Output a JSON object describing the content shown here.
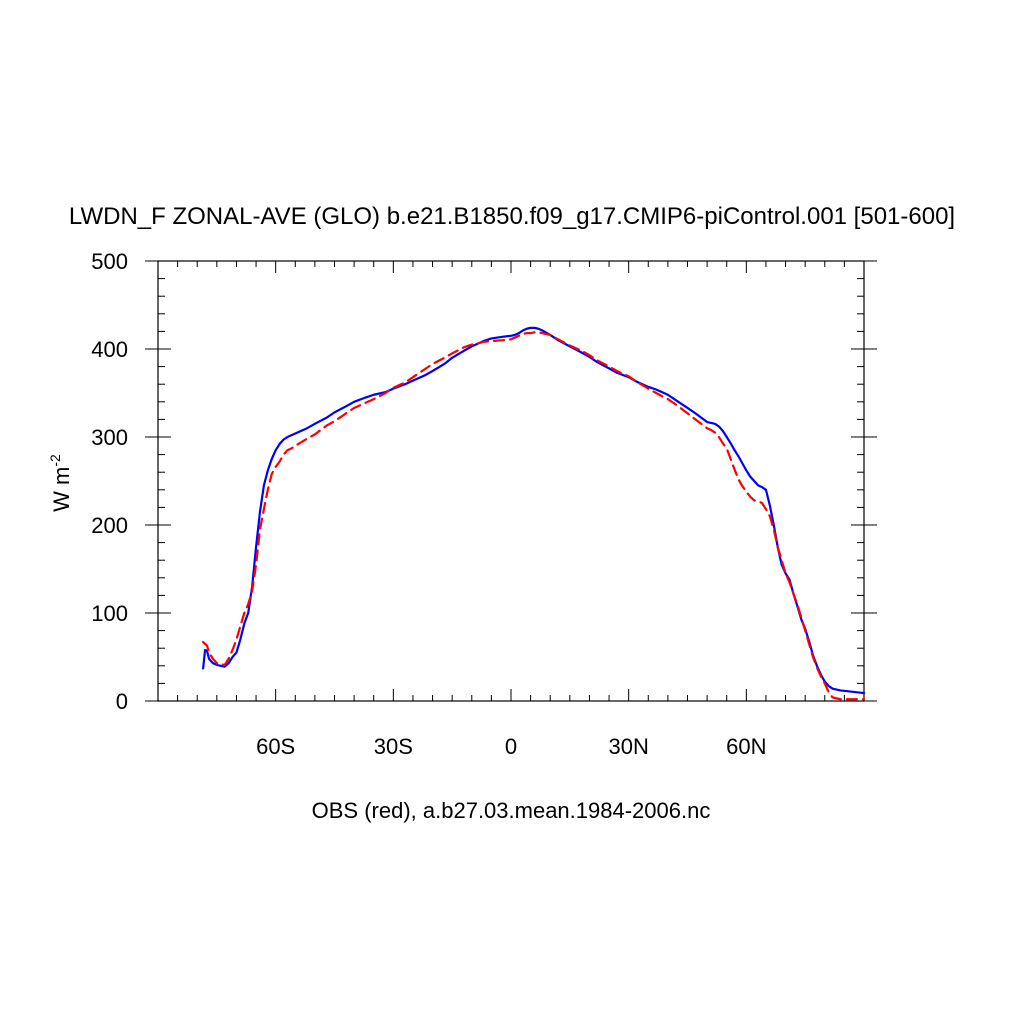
{
  "chart_data": {
    "type": "line",
    "title": "LWDN_F ZONAL-AVE (GLO) b.e21.B1850.f09_g17.CMIP6-piControl.001 [501-600]",
    "xlabel": "OBS (red), a.b27.03.mean.1984-2006.nc",
    "ylabel_base": "W m",
    "ylabel_sup": "-2",
    "xlim": [
      -90,
      90
    ],
    "ylim": [
      0,
      500
    ],
    "xticks": [
      {
        "value": -60,
        "label": "60S"
      },
      {
        "value": -30,
        "label": "30S"
      },
      {
        "value": 0,
        "label": "0"
      },
      {
        "value": 30,
        "label": "30N"
      },
      {
        "value": 60,
        "label": "60N"
      }
    ],
    "yticks": [
      {
        "value": 0,
        "label": "0"
      },
      {
        "value": 100,
        "label": "100"
      },
      {
        "value": 200,
        "label": "200"
      },
      {
        "value": 300,
        "label": "300"
      },
      {
        "value": 400,
        "label": "400"
      },
      {
        "value": 500,
        "label": "500"
      }
    ],
    "grid": false,
    "series": [
      {
        "color": "#0000ff",
        "dash": "solid",
        "points": [
          [
            -78.5,
            37
          ],
          [
            -78,
            58
          ],
          [
            -77.5,
            57
          ],
          [
            -77,
            48
          ],
          [
            -76,
            43
          ],
          [
            -75,
            41
          ],
          [
            -74,
            40
          ],
          [
            -73,
            39
          ],
          [
            -72,
            43
          ],
          [
            -71,
            50
          ],
          [
            -70,
            55
          ],
          [
            -69,
            70
          ],
          [
            -68,
            88
          ],
          [
            -67,
            100
          ],
          [
            -66,
            130
          ],
          [
            -65,
            175
          ],
          [
            -64,
            215
          ],
          [
            -63,
            245
          ],
          [
            -62,
            262
          ],
          [
            -61,
            275
          ],
          [
            -60,
            285
          ],
          [
            -59,
            292
          ],
          [
            -58,
            297
          ],
          [
            -57,
            300
          ],
          [
            -56,
            302
          ],
          [
            -55,
            304
          ],
          [
            -52,
            310
          ],
          [
            -50,
            315
          ],
          [
            -47,
            322
          ],
          [
            -45,
            328
          ],
          [
            -42,
            335
          ],
          [
            -40,
            340
          ],
          [
            -37,
            345
          ],
          [
            -35,
            348
          ],
          [
            -32,
            351
          ],
          [
            -30,
            355
          ],
          [
            -27,
            360
          ],
          [
            -25,
            364
          ],
          [
            -22,
            370
          ],
          [
            -20,
            375
          ],
          [
            -17,
            383
          ],
          [
            -15,
            390
          ],
          [
            -12,
            398
          ],
          [
            -10,
            403
          ],
          [
            -7,
            409
          ],
          [
            -5,
            412
          ],
          [
            -2,
            414
          ],
          [
            0,
            415
          ],
          [
            1,
            416
          ],
          [
            2,
            418
          ],
          [
            3,
            421
          ],
          [
            4,
            423
          ],
          [
            5,
            424
          ],
          [
            6,
            424
          ],
          [
            7,
            423
          ],
          [
            8,
            421
          ],
          [
            10,
            416
          ],
          [
            12,
            410
          ],
          [
            15,
            403
          ],
          [
            18,
            396
          ],
          [
            20,
            391
          ],
          [
            22,
            385
          ],
          [
            25,
            378
          ],
          [
            27,
            373
          ],
          [
            30,
            368
          ],
          [
            32,
            363
          ],
          [
            35,
            357
          ],
          [
            37,
            354
          ],
          [
            40,
            348
          ],
          [
            42,
            342
          ],
          [
            45,
            333
          ],
          [
            47,
            327
          ],
          [
            50,
            317
          ],
          [
            51,
            316
          ],
          [
            52,
            315
          ],
          [
            53,
            312
          ],
          [
            54,
            307
          ],
          [
            55,
            300
          ],
          [
            56,
            293
          ],
          [
            57,
            285
          ],
          [
            58,
            278
          ],
          [
            59,
            270
          ],
          [
            60,
            262
          ],
          [
            61,
            255
          ],
          [
            62,
            250
          ],
          [
            63,
            245
          ],
          [
            64,
            243
          ],
          [
            65,
            240
          ],
          [
            66,
            222
          ],
          [
            67,
            200
          ],
          [
            68,
            175
          ],
          [
            69,
            155
          ],
          [
            70,
            145
          ],
          [
            71,
            138
          ],
          [
            72,
            122
          ],
          [
            73,
            108
          ],
          [
            74,
            93
          ],
          [
            75,
            82
          ],
          [
            76,
            68
          ],
          [
            77,
            52
          ],
          [
            78,
            40
          ],
          [
            79,
            30
          ],
          [
            80,
            22
          ],
          [
            81,
            17
          ],
          [
            82,
            14
          ],
          [
            84,
            12
          ],
          [
            86,
            11
          ],
          [
            88,
            10
          ],
          [
            90,
            9
          ]
        ]
      },
      {
        "color": "#ff0000",
        "dash": "dashed",
        "points": [
          [
            -78.5,
            67
          ],
          [
            -78,
            65
          ],
          [
            -77.5,
            63
          ],
          [
            -77,
            55
          ],
          [
            -76,
            48
          ],
          [
            -75,
            43
          ],
          [
            -74,
            42
          ],
          [
            -73,
            41
          ],
          [
            -72,
            48
          ],
          [
            -71,
            58
          ],
          [
            -70,
            70
          ],
          [
            -69,
            85
          ],
          [
            -68,
            100
          ],
          [
            -67,
            110
          ],
          [
            -66,
            125
          ],
          [
            -65,
            155
          ],
          [
            -64,
            195
          ],
          [
            -63,
            218
          ],
          [
            -62,
            240
          ],
          [
            -61,
            258
          ],
          [
            -60,
            266
          ],
          [
            -59,
            272
          ],
          [
            -58,
            280
          ],
          [
            -57,
            285
          ],
          [
            -56,
            287
          ],
          [
            -55,
            290
          ],
          [
            -52,
            298
          ],
          [
            -50,
            303
          ],
          [
            -47,
            313
          ],
          [
            -45,
            318
          ],
          [
            -42,
            327
          ],
          [
            -40,
            333
          ],
          [
            -37,
            339
          ],
          [
            -35,
            343
          ],
          [
            -32,
            350
          ],
          [
            -30,
            356
          ],
          [
            -27,
            362
          ],
          [
            -25,
            368
          ],
          [
            -22,
            377
          ],
          [
            -20,
            383
          ],
          [
            -17,
            390
          ],
          [
            -15,
            395
          ],
          [
            -12,
            402
          ],
          [
            -10,
            405
          ],
          [
            -7,
            408
          ],
          [
            -5,
            409
          ],
          [
            -2,
            410
          ],
          [
            0,
            411
          ],
          [
            1,
            413
          ],
          [
            2,
            415
          ],
          [
            3,
            417
          ],
          [
            4,
            418
          ],
          [
            5,
            418
          ],
          [
            6,
            419
          ],
          [
            7,
            419
          ],
          [
            8,
            418
          ],
          [
            10,
            416
          ],
          [
            12,
            411
          ],
          [
            15,
            404
          ],
          [
            18,
            398
          ],
          [
            20,
            393
          ],
          [
            22,
            387
          ],
          [
            25,
            380
          ],
          [
            27,
            375
          ],
          [
            30,
            369
          ],
          [
            32,
            363
          ],
          [
            35,
            355
          ],
          [
            37,
            350
          ],
          [
            40,
            343
          ],
          [
            42,
            337
          ],
          [
            45,
            327
          ],
          [
            47,
            320
          ],
          [
            50,
            310
          ],
          [
            51,
            308
          ],
          [
            52,
            305
          ],
          [
            53,
            300
          ],
          [
            54,
            293
          ],
          [
            55,
            287
          ],
          [
            56,
            275
          ],
          [
            57,
            263
          ],
          [
            58,
            252
          ],
          [
            59,
            244
          ],
          [
            60,
            238
          ],
          [
            61,
            232
          ],
          [
            62,
            228
          ],
          [
            63,
            227
          ],
          [
            64,
            225
          ],
          [
            65,
            218
          ],
          [
            66,
            210
          ],
          [
            67,
            195
          ],
          [
            68,
            175
          ],
          [
            69,
            160
          ],
          [
            70,
            145
          ],
          [
            71,
            135
          ],
          [
            72,
            122
          ],
          [
            73,
            110
          ],
          [
            74,
            95
          ],
          [
            75,
            80
          ],
          [
            76,
            65
          ],
          [
            77,
            50
          ],
          [
            78,
            38
          ],
          [
            79,
            28
          ],
          [
            80,
            20
          ],
          [
            81,
            10
          ],
          [
            82,
            4
          ],
          [
            84,
            2
          ],
          [
            86,
            2
          ],
          [
            88,
            2
          ],
          [
            90,
            2
          ]
        ]
      }
    ]
  }
}
